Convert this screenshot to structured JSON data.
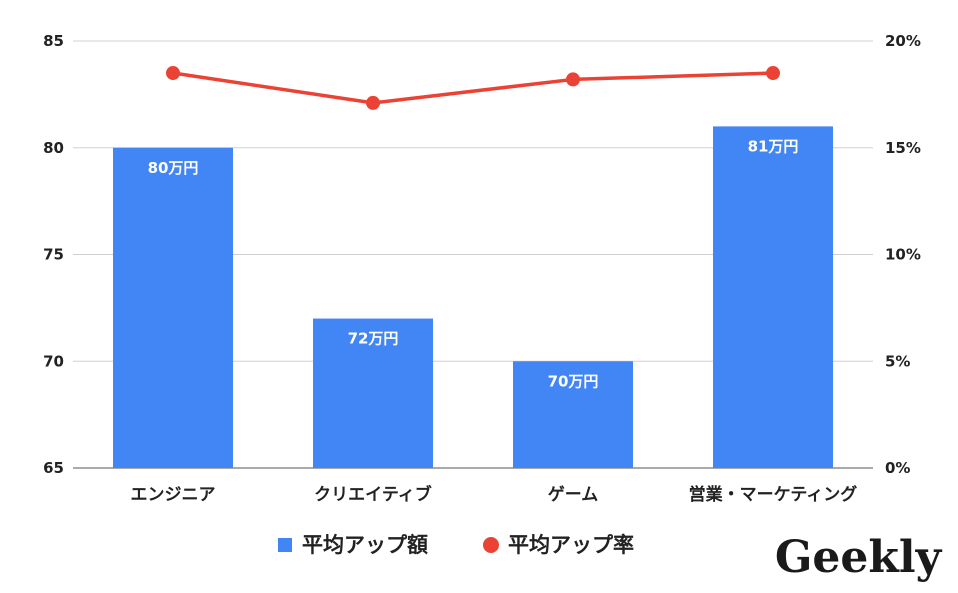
{
  "chart_data": {
    "type": "bar",
    "categories": [
      "エンジニア",
      "クリエイティブ",
      "ゲーム",
      "営業・マーケティング"
    ],
    "series": [
      {
        "name": "平均アップ額",
        "type": "bar",
        "axis": "left",
        "values": [
          80,
          72,
          70,
          81
        ],
        "data_labels": [
          "80万円",
          "72万円",
          "70万円",
          "81万円"
        ],
        "color": "#4285f4"
      },
      {
        "name": "平均アップ率",
        "type": "line",
        "axis": "right",
        "values": [
          18.5,
          17.1,
          18.2,
          18.5
        ],
        "color": "#ea4335"
      }
    ],
    "y_left": {
      "range": [
        65,
        85
      ],
      "ticks": [
        "65",
        "70",
        "75",
        "80",
        "85"
      ]
    },
    "y_right": {
      "range": [
        0,
        20
      ],
      "ticks": [
        "0%",
        "5%",
        "10%",
        "15%",
        "20%"
      ]
    },
    "grid": true,
    "legend_position": "bottom"
  },
  "logo": {
    "text": "Geekly"
  }
}
